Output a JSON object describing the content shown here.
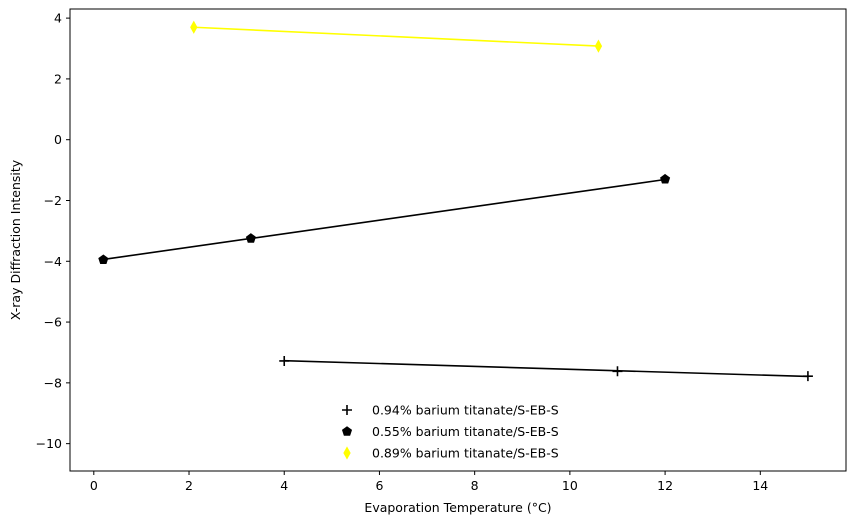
{
  "chart_data": {
    "type": "scatter",
    "title": "",
    "xlabel": "Evaporation Temperature (°C)",
    "ylabel": "X-ray Diffraction Intensity",
    "xlim": [
      -0.5,
      15.8
    ],
    "ylim": [
      -10.9,
      4.3
    ],
    "xticks": [
      0,
      2,
      4,
      6,
      8,
      10,
      12,
      14
    ],
    "yticks": [
      -10,
      -8,
      -6,
      -4,
      -2,
      0,
      2,
      4
    ],
    "grid": false,
    "legend_placement": "lower-center",
    "series": [
      {
        "name": "0.94% barium titanate/S-EB-S",
        "marker": "plus",
        "color": "#000000",
        "x": [
          4.0,
          11.0,
          15.0
        ],
        "y": [
          -7.28,
          -7.62,
          -7.78
        ],
        "fit": {
          "x": [
            4.0,
            15.0
          ],
          "y": [
            -7.27,
            -7.79
          ]
        }
      },
      {
        "name": "0.55% barium titanate/S-EB-S",
        "marker": "pentagon",
        "color": "#000000",
        "x": [
          0.2,
          3.3,
          12.0
        ],
        "y": [
          -3.95,
          -3.25,
          -1.3
        ],
        "fit": {
          "x": [
            0.2,
            12.0
          ],
          "y": [
            -3.94,
            -1.31
          ]
        }
      },
      {
        "name": "0.89% barium titanate/S-EB-S",
        "marker": "thin-diamond",
        "color": "#ffff00",
        "x": [
          2.1,
          10.6
        ],
        "y": [
          3.7,
          3.08
        ],
        "fit": {
          "x": [
            2.1,
            10.6
          ],
          "y": [
            3.7,
            3.08
          ]
        }
      }
    ]
  }
}
